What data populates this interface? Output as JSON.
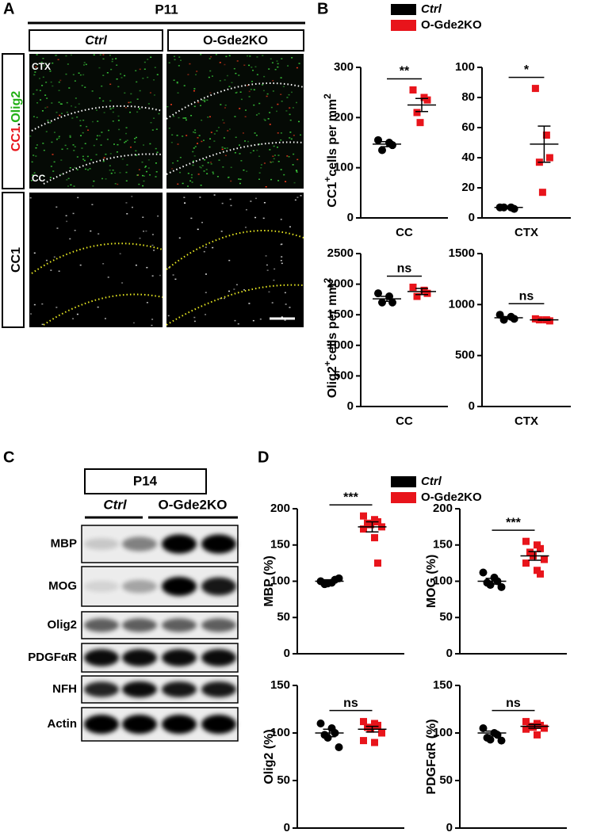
{
  "figure": {
    "panel_labels": [
      "A",
      "B",
      "C",
      "D"
    ],
    "panel_a": {
      "age": "P11",
      "columns": [
        "Ctrl",
        "O-Gde2KO"
      ],
      "row_labels": [
        [
          "CC1",
          ".",
          "Olig2"
        ],
        [
          "CC1"
        ]
      ],
      "regions": [
        "CTX",
        "CC"
      ]
    },
    "legend_b": [
      {
        "name": "Ctrl",
        "color": "#000000"
      },
      {
        "name": "O-Gde2KO",
        "color": "#e8141b"
      }
    ],
    "panel_c": {
      "age": "P14",
      "columns": [
        "Ctrl",
        "O-Gde2KO"
      ],
      "rows": [
        "MBP",
        "MOG",
        "Olig2",
        "PDGFαR",
        "NFH",
        "Actin"
      ]
    },
    "legend_d": [
      {
        "name": "Ctrl",
        "color": "#000000"
      },
      {
        "name": "O-Gde2KO",
        "color": "#e8141b"
      }
    ]
  },
  "chart_data": [
    {
      "type": "strip",
      "ylabel": [
        "CC1",
        "+",
        "cells per mm",
        "2"
      ],
      "xlabel": "CC",
      "ylim": [
        0,
        300
      ],
      "yticks": [
        0,
        100,
        200,
        300
      ],
      "annotation": "**",
      "series": [
        {
          "color": "#000000",
          "values": [
            155,
            150,
            145,
            135
          ],
          "mean": 147,
          "sem": 5
        },
        {
          "color": "#e8141b",
          "values": [
            255,
            240,
            235,
            210,
            190
          ],
          "mean": 225,
          "sem": 13
        }
      ]
    },
    {
      "type": "strip",
      "xlabel": "CTX",
      "ylim": [
        0,
        100
      ],
      "yticks": [
        0,
        20,
        40,
        60,
        80,
        100
      ],
      "annotation": "*",
      "series": [
        {
          "color": "#000000",
          "values": [
            7,
            7,
            6,
            7
          ],
          "mean": 7,
          "sem": 0.3
        },
        {
          "color": "#e8141b",
          "values": [
            86,
            55,
            40,
            37,
            17
          ],
          "mean": 49,
          "sem": 12
        }
      ]
    },
    {
      "type": "strip",
      "ylabel": [
        "Olig2",
        "+",
        "cells per mm",
        "2"
      ],
      "xlabel": "CC",
      "ylim": [
        0,
        2500
      ],
      "yticks": [
        0,
        500,
        1000,
        1500,
        2000,
        2500
      ],
      "annotation": "ns",
      "series": [
        {
          "color": "#000000",
          "values": [
            1850,
            1800,
            1700,
            1700
          ],
          "mean": 1760,
          "sem": 40
        },
        {
          "color": "#e8141b",
          "values": [
            1950,
            1900,
            1850,
            1800
          ],
          "mean": 1880,
          "sem": 50
        }
      ]
    },
    {
      "type": "strip",
      "xlabel": "CTX",
      "ylim": [
        0,
        1500
      ],
      "yticks": [
        0,
        500,
        1000,
        1500
      ],
      "annotation": "ns",
      "series": [
        {
          "color": "#000000",
          "values": [
            900,
            880,
            860,
            850
          ],
          "mean": 870,
          "sem": 12
        },
        {
          "color": "#e8141b",
          "values": [
            860,
            850,
            840,
            850
          ],
          "mean": 850,
          "sem": 5
        }
      ]
    },
    {
      "type": "strip",
      "ylabel": [
        "MBP (%)"
      ],
      "ylim": [
        0,
        200
      ],
      "yticks": [
        0,
        50,
        100,
        150,
        200
      ],
      "annotation": "***",
      "series": [
        {
          "color": "#000000",
          "values": [
            100,
            98,
            102,
            96,
            97,
            104
          ],
          "mean": 100,
          "sem": 2
        },
        {
          "color": "#e8141b",
          "values": [
            190,
            185,
            182,
            180,
            178,
            175,
            172,
            160,
            125
          ],
          "mean": 175,
          "sem": 7
        }
      ]
    },
    {
      "type": "strip",
      "ylabel": [
        "MOG (%)"
      ],
      "ylim": [
        0,
        200
      ],
      "yticks": [
        0,
        50,
        100,
        150,
        200
      ],
      "annotation": "***",
      "series": [
        {
          "color": "#000000",
          "values": [
            112,
            105,
            100,
            98,
            95,
            92
          ],
          "mean": 100,
          "sem": 4
        },
        {
          "color": "#e8141b",
          "values": [
            155,
            150,
            145,
            140,
            135,
            130,
            125,
            115,
            110
          ],
          "mean": 135,
          "sem": 6
        }
      ]
    },
    {
      "type": "strip",
      "ylabel": [
        "Olig2 (%)"
      ],
      "ylim": [
        0,
        150
      ],
      "yticks": [
        0,
        50,
        100,
        150
      ],
      "annotation": "ns",
      "series": [
        {
          "color": "#000000",
          "values": [
            110,
            105,
            100,
            98,
            95,
            85
          ],
          "mean": 100,
          "sem": 4
        },
        {
          "color": "#e8141b",
          "values": [
            112,
            110,
            108,
            106,
            104,
            100,
            92,
            90
          ],
          "mean": 104,
          "sem": 3
        }
      ]
    },
    {
      "type": "strip",
      "ylabel": [
        "PDGFαR (%)"
      ],
      "ylim": [
        0,
        150
      ],
      "yticks": [
        0,
        50,
        100,
        150
      ],
      "annotation": "ns",
      "series": [
        {
          "color": "#000000",
          "values": [
            105,
            100,
            98,
            95,
            93,
            92
          ],
          "mean": 100,
          "sem": 2
        },
        {
          "color": "#e8141b",
          "values": [
            112,
            110,
            108,
            107,
            106,
            105,
            104,
            98
          ],
          "mean": 107,
          "sem": 2
        }
      ]
    }
  ]
}
